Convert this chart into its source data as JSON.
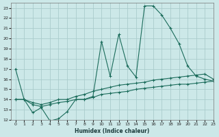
{
  "xlabel": "Humidex (Indice chaleur)",
  "bg_color": "#cce8e8",
  "grid_color": "#aacccc",
  "line_color": "#1a6b5a",
  "xlim": [
    -0.5,
    23
  ],
  "ylim": [
    12,
    23.5
  ],
  "xticks": [
    0,
    1,
    2,
    3,
    4,
    5,
    6,
    7,
    8,
    9,
    10,
    11,
    12,
    13,
    14,
    15,
    16,
    17,
    18,
    19,
    20,
    21,
    22,
    23
  ],
  "yticks": [
    12,
    13,
    14,
    15,
    16,
    17,
    18,
    19,
    20,
    21,
    22,
    23
  ],
  "line1_x": [
    0,
    1,
    2,
    3,
    4,
    5,
    6,
    7,
    8,
    9,
    10,
    11,
    12,
    13,
    14,
    15,
    16,
    17,
    18,
    19,
    20,
    21,
    22,
    23
  ],
  "line1_y": [
    17,
    14,
    12.7,
    13.2,
    11.9,
    12.1,
    12.8,
    14.0,
    14.0,
    14.3,
    19.7,
    16.3,
    20.4,
    17.3,
    16.2,
    23.2,
    23.2,
    22.3,
    21.0,
    19.5,
    17.3,
    16.3,
    16.0,
    15.8
  ],
  "line2_x": [
    0,
    1,
    2,
    3,
    4,
    5,
    6,
    7,
    8,
    9,
    10,
    11,
    12,
    13,
    14,
    15,
    16,
    17,
    18,
    19,
    20,
    21,
    22,
    23
  ],
  "line2_y": [
    14,
    14,
    13.7,
    13.5,
    13.7,
    14.0,
    14.0,
    14.3,
    14.5,
    14.8,
    15.0,
    15.2,
    15.4,
    15.5,
    15.6,
    15.7,
    15.9,
    16.0,
    16.1,
    16.2,
    16.3,
    16.4,
    16.5,
    16.0
  ],
  "line3_x": [
    0,
    1,
    2,
    3,
    4,
    5,
    6,
    7,
    8,
    9,
    10,
    11,
    12,
    13,
    14,
    15,
    16,
    17,
    18,
    19,
    20,
    21,
    22,
    23
  ],
  "line3_y": [
    14,
    14,
    13.5,
    13.3,
    13.5,
    13.7,
    13.8,
    14.0,
    14.0,
    14.2,
    14.5,
    14.6,
    14.7,
    14.8,
    15.0,
    15.1,
    15.2,
    15.3,
    15.4,
    15.5,
    15.5,
    15.6,
    15.7,
    15.8
  ]
}
